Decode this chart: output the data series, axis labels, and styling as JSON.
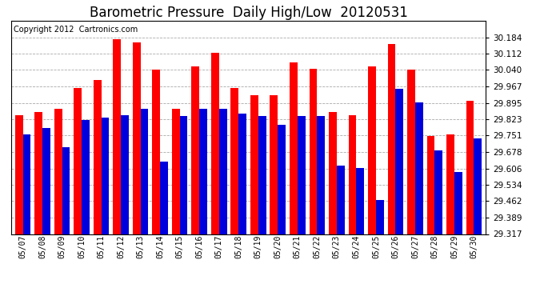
{
  "title": "Barometric Pressure  Daily High/Low  20120531",
  "copyright": "Copyright 2012  Cartronics.com",
  "dates": [
    "05/07",
    "05/08",
    "05/09",
    "05/10",
    "05/11",
    "05/12",
    "05/13",
    "05/14",
    "05/15",
    "05/16",
    "05/17",
    "05/18",
    "05/19",
    "05/20",
    "05/21",
    "05/22",
    "05/23",
    "05/24",
    "05/25",
    "05/26",
    "05/27",
    "05/28",
    "05/29",
    "05/30"
  ],
  "highs": [
    29.84,
    29.855,
    29.87,
    29.96,
    29.995,
    30.175,
    30.16,
    30.04,
    29.87,
    30.055,
    30.115,
    29.96,
    29.93,
    29.93,
    30.075,
    30.045,
    29.855,
    29.84,
    30.055,
    30.155,
    30.04,
    29.75,
    29.755,
    29.905
  ],
  "lows": [
    29.755,
    29.785,
    29.7,
    29.82,
    29.83,
    29.84,
    29.87,
    29.635,
    29.838,
    29.87,
    29.868,
    29.848,
    29.838,
    29.798,
    29.838,
    29.838,
    29.618,
    29.608,
    29.468,
    29.958,
    29.898,
    29.685,
    29.59,
    29.738
  ],
  "high_color": "#ff0000",
  "low_color": "#0000dd",
  "ylim_min": 29.317,
  "ylim_max": 30.256,
  "yticks": [
    29.317,
    29.389,
    29.462,
    29.534,
    29.606,
    29.678,
    29.751,
    29.823,
    29.895,
    29.967,
    30.04,
    30.112,
    30.184
  ],
  "bg_color": "#ffffff",
  "plot_bg_color": "#ffffff",
  "grid_color": "#aaaaaa",
  "title_fontsize": 12,
  "copyright_fontsize": 7,
  "bar_width": 0.4
}
